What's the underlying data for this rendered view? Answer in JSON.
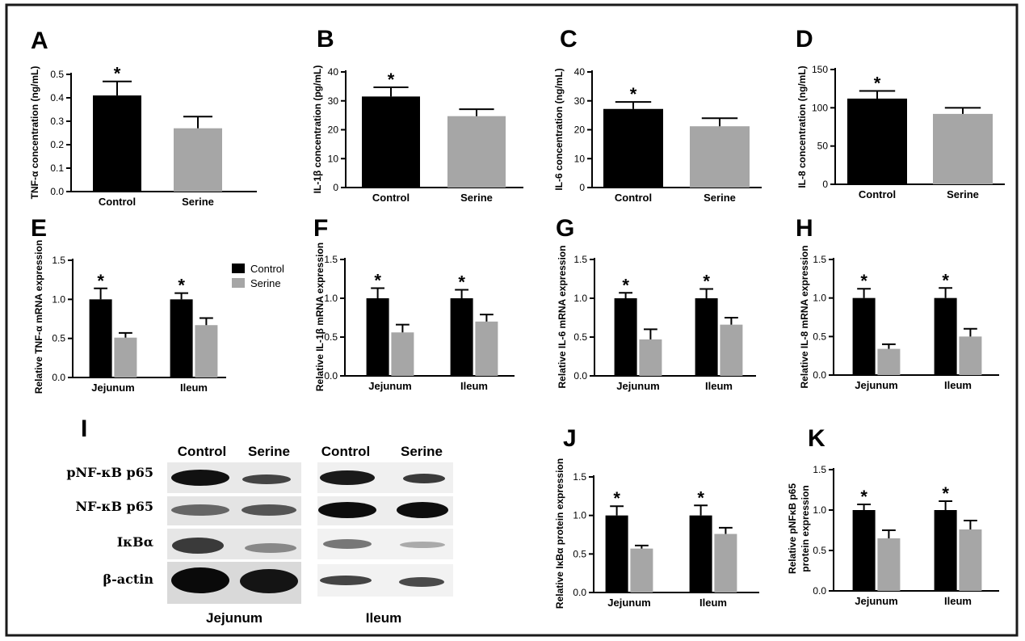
{
  "colors": {
    "control": "#000000",
    "serine": "#a6a6a6",
    "border": "#1a1a1a"
  },
  "legend": {
    "control": "Control",
    "serine": "Serine"
  },
  "chart_data": [
    {
      "id": "A",
      "panel_label": "A",
      "type": "bar",
      "ylabel": "TNF-α concentration (ng/mL)",
      "categories": [
        "Control",
        "Serine"
      ],
      "series": [
        {
          "name": "value",
          "values": [
            0.41,
            0.27
          ],
          "errors": [
            0.06,
            0.05
          ],
          "sig": [
            "*",
            ""
          ]
        }
      ],
      "ylim": [
        0,
        0.5
      ],
      "yticks": [
        0,
        0.1,
        0.2,
        0.3,
        0.4,
        0.5
      ],
      "ytick_labels": [
        "0.0",
        "0.1",
        "0.2",
        "0.3",
        "0.4",
        "0.5"
      ]
    },
    {
      "id": "B",
      "panel_label": "B",
      "type": "bar",
      "ylabel": "IL-1β concentration (pg/mL)",
      "categories": [
        "Control",
        "Serine"
      ],
      "series": [
        {
          "name": "value",
          "values": [
            31.5,
            24.7
          ],
          "errors": [
            3.2,
            2.4
          ],
          "sig": [
            "*",
            ""
          ]
        }
      ],
      "ylim": [
        0,
        40
      ],
      "yticks": [
        0,
        10,
        20,
        30,
        40
      ],
      "ytick_labels": [
        "0",
        "10",
        "20",
        "30",
        "40"
      ]
    },
    {
      "id": "C",
      "panel_label": "C",
      "type": "bar",
      "ylabel": "IL-6 concentration (ng/mL)",
      "categories": [
        "Control",
        "Serine"
      ],
      "series": [
        {
          "name": "value",
          "values": [
            27.2,
            21.2
          ],
          "errors": [
            2.4,
            2.8
          ],
          "sig": [
            "*",
            ""
          ]
        }
      ],
      "ylim": [
        0,
        40
      ],
      "yticks": [
        0,
        10,
        20,
        30,
        40
      ],
      "ytick_labels": [
        "0",
        "10",
        "20",
        "30",
        "40"
      ]
    },
    {
      "id": "D",
      "panel_label": "D",
      "type": "bar",
      "ylabel": "IL-8 concentration (ng/mL)",
      "categories": [
        "Control",
        "Serine"
      ],
      "series": [
        {
          "name": "value",
          "values": [
            112,
            92
          ],
          "errors": [
            10,
            8
          ],
          "sig": [
            "*",
            ""
          ]
        }
      ],
      "ylim": [
        0,
        150
      ],
      "yticks": [
        0,
        50,
        100,
        150
      ],
      "ytick_labels": [
        "0",
        "50",
        "100",
        "150"
      ]
    },
    {
      "id": "E",
      "panel_label": "E",
      "type": "bar",
      "ylabel": "Relative TNF-α mRNA expression",
      "categories": [
        "Jejunum",
        "Ileum"
      ],
      "series": [
        {
          "name": "Control",
          "values": [
            1.0,
            1.0
          ],
          "errors": [
            0.14,
            0.08
          ],
          "sig": [
            "*",
            "*"
          ]
        },
        {
          "name": "Serine",
          "values": [
            0.51,
            0.67
          ],
          "errors": [
            0.06,
            0.09
          ],
          "sig": [
            "",
            ""
          ]
        }
      ],
      "ylim": [
        0,
        1.5
      ],
      "yticks": [
        0,
        0.5,
        1.0,
        1.5
      ],
      "ytick_labels": [
        "0.0",
        "0.5",
        "1.0",
        "1.5"
      ],
      "legend": true
    },
    {
      "id": "F",
      "panel_label": "F",
      "type": "bar",
      "ylabel": "Relative IL-1β mRNA expression",
      "categories": [
        "Jejunum",
        "Ileum"
      ],
      "series": [
        {
          "name": "Control",
          "values": [
            1.0,
            1.0
          ],
          "errors": [
            0.13,
            0.11
          ],
          "sig": [
            "*",
            "*"
          ]
        },
        {
          "name": "Serine",
          "values": [
            0.56,
            0.7
          ],
          "errors": [
            0.1,
            0.09
          ],
          "sig": [
            "",
            ""
          ]
        }
      ],
      "ylim": [
        0,
        1.5
      ],
      "yticks": [
        0,
        0.5,
        1.0,
        1.5
      ],
      "ytick_labels": [
        "0.0",
        "0.5",
        "1.0",
        "1.5"
      ]
    },
    {
      "id": "G",
      "panel_label": "G",
      "type": "bar",
      "ylabel": "Relative IL-6 mRNA expression",
      "categories": [
        "Jejunum",
        "Ileum"
      ],
      "series": [
        {
          "name": "Control",
          "values": [
            1.0,
            1.0
          ],
          "errors": [
            0.07,
            0.12
          ],
          "sig": [
            "*",
            "*"
          ]
        },
        {
          "name": "Serine",
          "values": [
            0.47,
            0.66
          ],
          "errors": [
            0.13,
            0.09
          ],
          "sig": [
            "",
            ""
          ]
        }
      ],
      "ylim": [
        0,
        1.5
      ],
      "yticks": [
        0,
        0.5,
        1.0,
        1.5
      ],
      "ytick_labels": [
        "0.0",
        "0.5",
        "1.0",
        "1.5"
      ]
    },
    {
      "id": "H",
      "panel_label": "H",
      "type": "bar",
      "ylabel": "Relative IL-8 mRNA expression",
      "categories": [
        "Jejunum",
        "Ileum"
      ],
      "series": [
        {
          "name": "Control",
          "values": [
            1.0,
            1.0
          ],
          "errors": [
            0.12,
            0.13
          ],
          "sig": [
            "*",
            "*"
          ]
        },
        {
          "name": "Serine",
          "values": [
            0.34,
            0.5
          ],
          "errors": [
            0.06,
            0.1
          ],
          "sig": [
            "",
            ""
          ]
        }
      ],
      "ylim": [
        0,
        1.5
      ],
      "yticks": [
        0,
        0.5,
        1.0,
        1.5
      ],
      "ytick_labels": [
        "0.0",
        "0.5",
        "1.0",
        "1.5"
      ]
    },
    {
      "id": "J",
      "panel_label": "J",
      "type": "bar",
      "ylabel": "Relative IκBα protein expression",
      "categories": [
        "Jejunum",
        "Ileum"
      ],
      "series": [
        {
          "name": "Control",
          "values": [
            1.0,
            1.0
          ],
          "errors": [
            0.12,
            0.13
          ],
          "sig": [
            "*",
            "*"
          ]
        },
        {
          "name": "Serine",
          "values": [
            0.57,
            0.76
          ],
          "errors": [
            0.04,
            0.08
          ],
          "sig": [
            "",
            ""
          ]
        }
      ],
      "ylim": [
        0,
        1.5
      ],
      "yticks": [
        0,
        0.5,
        1.0,
        1.5
      ],
      "ytick_labels": [
        "0.0",
        "0.5",
        "1.0",
        "1.5"
      ]
    },
    {
      "id": "K",
      "panel_label": "K",
      "type": "bar",
      "ylabel": [
        "Relative pNFκB p65",
        "protein expression"
      ],
      "categories": [
        "Jejunum",
        "Ileum"
      ],
      "series": [
        {
          "name": "Control",
          "values": [
            1.0,
            1.0
          ],
          "errors": [
            0.07,
            0.11
          ],
          "sig": [
            "*",
            "*"
          ]
        },
        {
          "name": "Serine",
          "values": [
            0.65,
            0.76
          ],
          "errors": [
            0.1,
            0.11
          ],
          "sig": [
            "",
            ""
          ]
        }
      ],
      "ylim": [
        0,
        1.5
      ],
      "yticks": [
        0,
        0.5,
        1.0,
        1.5
      ],
      "ytick_labels": [
        "0.0",
        "0.5",
        "1.0",
        "1.5"
      ]
    }
  ],
  "blot": {
    "panel_label": "I",
    "lane_headers": [
      "Control",
      "Serine",
      "Control",
      "Serine"
    ],
    "rows": [
      "pNF-κB p65",
      "NF-κB p65",
      "IκBα",
      "β-actin"
    ],
    "tissues": [
      "Jejunum",
      "Ileum"
    ]
  }
}
